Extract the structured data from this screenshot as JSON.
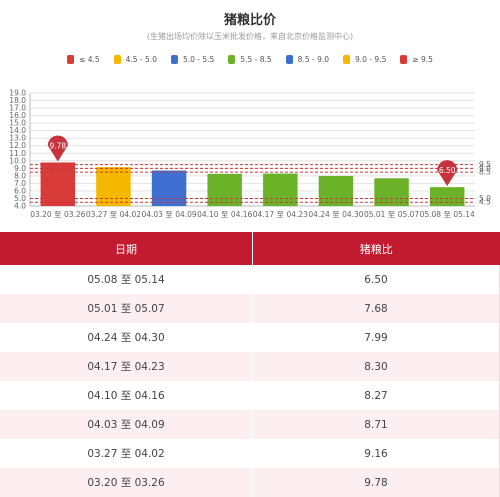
{
  "header": {
    "title": "猪粮比价",
    "subtitle": "(生猪出场均价除以玉米批发价格，来自北京价格监测中心)"
  },
  "legend": [
    {
      "label": "≤ 4.5",
      "color": "#d93a3a"
    },
    {
      "label": "4.5 - 5.0",
      "color": "#f5b800"
    },
    {
      "label": "5.0 - 5.5",
      "color": "#3f6fd1"
    },
    {
      "label": "5.5 - 8.5",
      "color": "#6cb229"
    },
    {
      "label": "8.5 - 9.0",
      "color": "#3f6fd1"
    },
    {
      "label": "9.0 - 9.5",
      "color": "#f5b800"
    },
    {
      "label": "≥ 9.5",
      "color": "#d93a3a"
    }
  ],
  "chart_data": {
    "type": "bar",
    "categories": [
      "03.20 至 03.26",
      "03.27 至 04.02",
      "04.03 至 04.09",
      "04.10 至 04.16",
      "04.17 至 04.23",
      "04.24 至 04.30",
      "05.01 至 05.07",
      "05.08 至 05.14"
    ],
    "values": [
      9.78,
      9.16,
      8.71,
      8.27,
      8.3,
      7.99,
      7.68,
      6.5
    ],
    "bar_colors": [
      "#d93a3a",
      "#f5b800",
      "#3f6fd1",
      "#6cb229",
      "#6cb229",
      "#6cb229",
      "#6cb229",
      "#6cb229"
    ],
    "ylim": [
      4.0,
      19.0
    ],
    "yticks": [
      "4.0",
      "5.0",
      "6.0",
      "7.0",
      "8.0",
      "9.0",
      "10.0",
      "11.0",
      "12.0",
      "13.0",
      "14.0",
      "15.0",
      "16.0",
      "17.0",
      "18.0",
      "19.0"
    ],
    "reference_lines": [
      {
        "value": 4.5,
        "label": "4.5"
      },
      {
        "value": 5.0,
        "label": "5.0"
      },
      {
        "value": 8.5,
        "label": "8.5"
      },
      {
        "value": 9.0,
        "label": "9.0"
      },
      {
        "value": 9.5,
        "label": "9.5"
      }
    ],
    "markers": [
      {
        "index": 0,
        "label": "9.78"
      },
      {
        "index": 7,
        "label": "6.50"
      }
    ],
    "grid": true
  },
  "table": {
    "headers": [
      "日期",
      "猪粮比"
    ],
    "rows": [
      [
        "05.08 至 05.14",
        "6.50"
      ],
      [
        "05.01 至 05.07",
        "7.68"
      ],
      [
        "04.24 至 04.30",
        "7.99"
      ],
      [
        "04.17 至 04.23",
        "8.30"
      ],
      [
        "04.10 至 04.16",
        "8.27"
      ],
      [
        "04.03 至 04.09",
        "8.71"
      ],
      [
        "03.27 至 04.02",
        "9.16"
      ],
      [
        "03.20 至 03.26",
        "9.78"
      ]
    ]
  }
}
